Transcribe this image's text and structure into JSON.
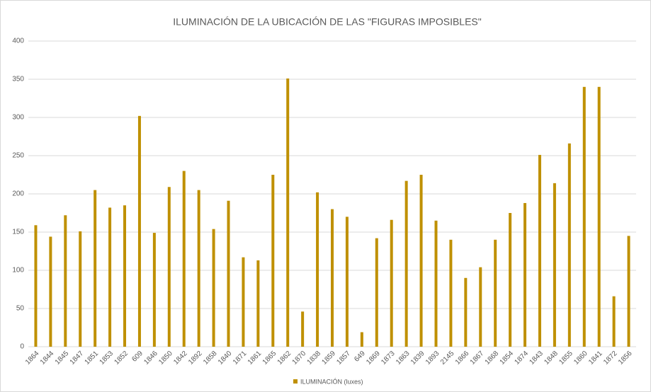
{
  "chart_data": {
    "type": "bar",
    "title": "ILUMINACIÓN DE LA UBICACIÓN DE LAS \"FIGURAS IMPOSIBLES\"",
    "categories": [
      "1864",
      "1844",
      "1845",
      "1847",
      "1851",
      "1853",
      "1852",
      "609",
      "1846",
      "1850",
      "1842",
      "1892",
      "1858",
      "1840",
      "1871",
      "1861",
      "1865",
      "1862",
      "1870",
      "1838",
      "1859",
      "1857",
      "649",
      "1869",
      "1873",
      "1863",
      "1839",
      "1893",
      "2145",
      "1866",
      "1867",
      "1868",
      "1854",
      "1874",
      "1843",
      "1848",
      "1855",
      "1860",
      "1841",
      "1872",
      "1856"
    ],
    "series": [
      {
        "name": "ILUMINACIÓN (luxes)",
        "color": "#bf9000",
        "values": [
          159,
          144,
          172,
          151,
          205,
          182,
          185,
          302,
          149,
          209,
          230,
          205,
          154,
          191,
          117,
          113,
          225,
          351,
          46,
          202,
          180,
          170,
          19,
          142,
          166,
          217,
          225,
          165,
          140,
          90,
          104,
          140,
          175,
          188,
          251,
          214,
          266,
          340,
          340,
          66,
          145
        ]
      }
    ],
    "ylim": [
      0,
      400
    ],
    "yticks": [
      0,
      50,
      100,
      150,
      200,
      250,
      300,
      350,
      400
    ],
    "grid": true,
    "legend": "bottom"
  }
}
